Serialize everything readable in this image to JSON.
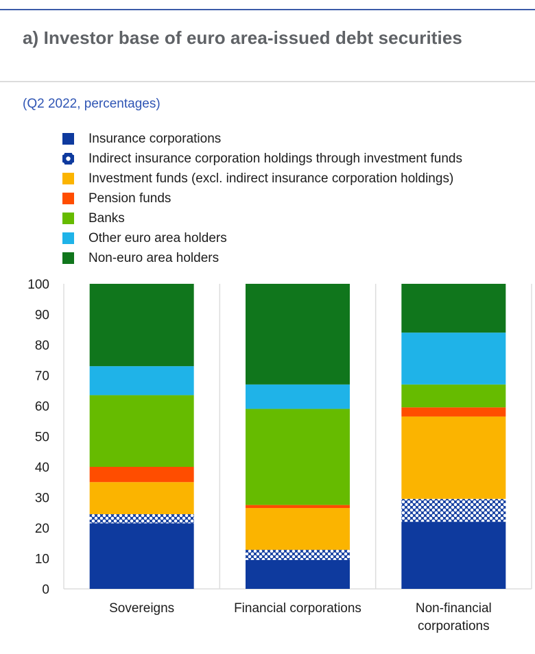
{
  "title": "a) Investor base of euro area-issued debt securities",
  "subtitle": "(Q2 2022, percentages)",
  "colors": {
    "insurance": "#0e3a9e",
    "indirect_insurance": "#0e3a9e",
    "investment_funds": "#fbb400",
    "pension_funds": "#ff4d00",
    "banks": "#66bb00",
    "other_ea": "#1fb3e8",
    "non_ea": "#10761c",
    "axis_text": "#1c1c1c",
    "grid": "#dddddd",
    "top_rule": "#3b5aa8",
    "subtitle": "#2f55b4"
  },
  "chart_data": {
    "type": "bar",
    "stacked": true,
    "categories": [
      "Sovereigns",
      "Financial corporations",
      "Non-financial corporations"
    ],
    "category_labels": [
      [
        "Sovereigns"
      ],
      [
        "Financial corporations"
      ],
      [
        "Non-financial",
        "corporations"
      ]
    ],
    "ylim": [
      0,
      100
    ],
    "yticks": [
      0,
      10,
      20,
      30,
      40,
      50,
      60,
      70,
      80,
      90,
      100
    ],
    "legend_position": "top-left",
    "grid": "vertical",
    "series": [
      {
        "name": "Insurance corporations",
        "color_key": "insurance",
        "pattern": "solid",
        "values": [
          21.5,
          9.5,
          22
        ]
      },
      {
        "name": "Indirect insurance corporation holdings through investment funds",
        "color_key": "indirect_insurance",
        "pattern": "checker",
        "values": [
          3,
          3.3,
          7.5
        ]
      },
      {
        "name": "Investment funds (excl. indirect insurance corporation holdings)",
        "color_key": "investment_funds",
        "pattern": "solid",
        "values": [
          10.5,
          13.7,
          27
        ]
      },
      {
        "name": "Pension funds",
        "color_key": "pension_funds",
        "pattern": "solid",
        "values": [
          5,
          1,
          3
        ]
      },
      {
        "name": "Banks",
        "color_key": "banks",
        "pattern": "solid",
        "values": [
          23.5,
          31.5,
          7.5
        ]
      },
      {
        "name": "Other euro area holders",
        "color_key": "other_ea",
        "pattern": "solid",
        "values": [
          9.5,
          8,
          17
        ]
      },
      {
        "name": "Non-euro area holders",
        "color_key": "non_ea",
        "pattern": "solid",
        "values": [
          27,
          33,
          16
        ]
      }
    ]
  }
}
